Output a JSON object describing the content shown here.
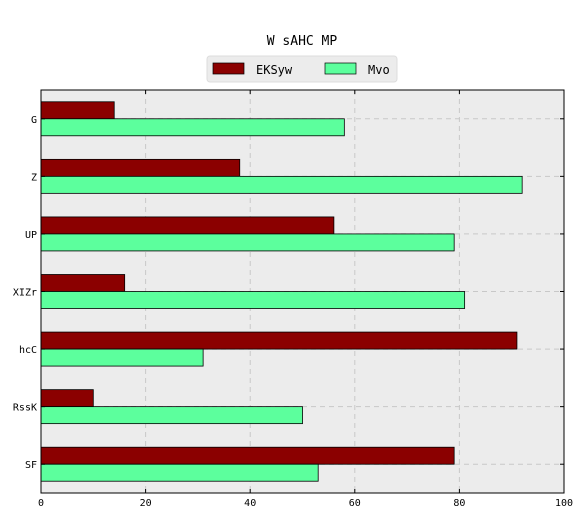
{
  "chart_data": {
    "type": "bar",
    "orientation": "horizontal",
    "title": "W sAHC MP",
    "categories": [
      "G",
      "Z",
      "UP",
      "XIZr",
      "hcC",
      "RssK",
      "SF"
    ],
    "series": [
      {
        "name": "EKSyw",
        "color": "#8b0000",
        "values": [
          14,
          38,
          56,
          16,
          91,
          10,
          79
        ]
      },
      {
        "name": "Mvo",
        "color": "#5cff9d",
        "values": [
          58,
          92,
          79,
          81,
          31,
          50,
          53
        ]
      }
    ],
    "xlim": [
      0,
      100
    ],
    "xticks": [
      0,
      20,
      40,
      60,
      80,
      100
    ],
    "grid": true,
    "legend_position": "top-center",
    "plot_background": "#ececec"
  }
}
